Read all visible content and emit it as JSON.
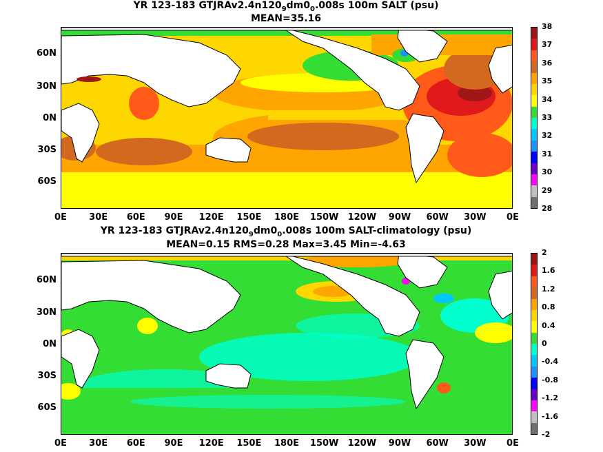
{
  "panel1": {
    "title_main": "YR 123-183 GTJRAv2.4n120",
    "title_sub1": "9",
    "title_mid": "dm0",
    "title_sub2": "0",
    "title_end": ".008s 100m SALT (psu)",
    "subtitle": "MEAN=35.16",
    "colorbar": {
      "labels": [
        "38",
        "37",
        "36",
        "35",
        "34",
        "33",
        "32",
        "31",
        "30",
        "29",
        "28"
      ],
      "colors": [
        "#a01616",
        "#e01a1a",
        "#ff5a1a",
        "#d2691e",
        "#ffa500",
        "#ffd700",
        "#ffff00",
        "#33dd33",
        "#00ffcc",
        "#00c8ff",
        "#1e90ff",
        "#0000ff",
        "#6a00c8",
        "#ff00ff",
        "#c0c0c0",
        "#707070"
      ]
    }
  },
  "panel2": {
    "title_main": "YR 123-183 GTJRAv2.4n120",
    "title_sub1": "9",
    "title_mid": "dm0",
    "title_sub2": "0",
    "title_end": ".008s 100m SALT-climatology (psu)",
    "subtitle": "MEAN=0.15   RMS=0.28   Max=3.45   Min=-4.63",
    "colorbar": {
      "labels": [
        "2",
        "1.6",
        "1.2",
        "0.8",
        "0.4",
        "0",
        "-0.4",
        "-0.8",
        "-1.2",
        "-1.6",
        "-2"
      ],
      "colors": [
        "#a01616",
        "#e01a1a",
        "#ff5a1a",
        "#d2691e",
        "#ffa500",
        "#ffd700",
        "#ffff00",
        "#33dd33",
        "#00ffcc",
        "#00c8ff",
        "#1e90ff",
        "#0000ff",
        "#6a00c8",
        "#ff00ff",
        "#c0c0c0",
        "#707070"
      ]
    }
  },
  "axes": {
    "lat_labels": [
      "60N",
      "30N",
      "0N",
      "30S",
      "60S"
    ],
    "lon_labels": [
      "0E",
      "30E",
      "60E",
      "90E",
      "120E",
      "150E",
      "180E",
      "150W",
      "120W",
      "90W",
      "60W",
      "30W",
      "0E"
    ]
  }
}
